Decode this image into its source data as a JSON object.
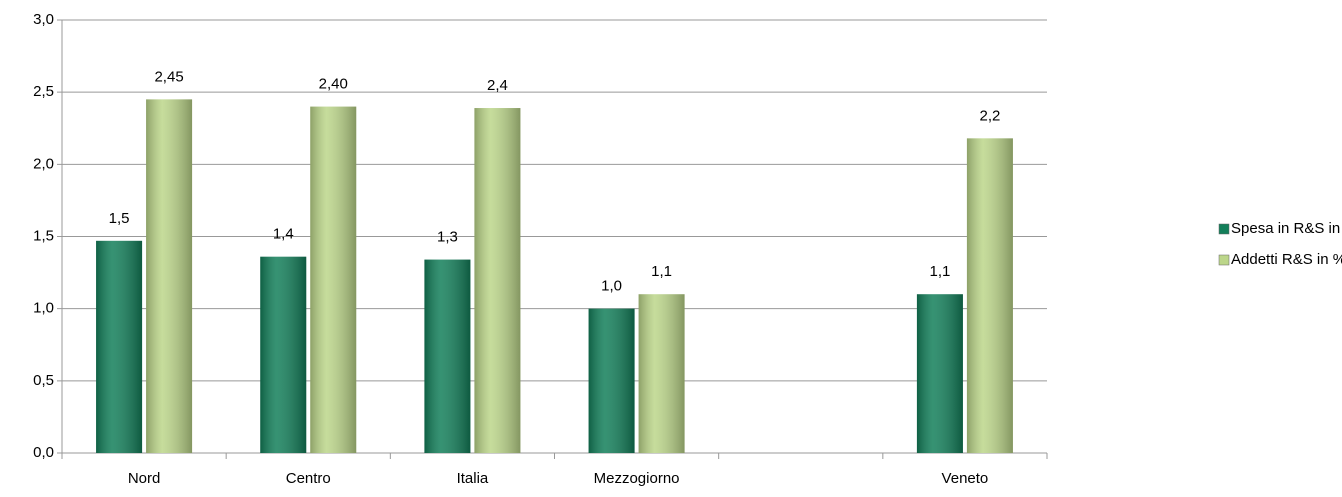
{
  "chart_data": {
    "type": "bar",
    "categories": [
      "Nord",
      "Centro",
      "Italia",
      "Mezzogiorno",
      null,
      "Veneto"
    ],
    "series": [
      {
        "name": "Spesa in R&S in % del PIL",
        "color": "#137f5a",
        "values": [
          1.47,
          1.36,
          1.34,
          1.0,
          null,
          1.1
        ],
        "value_labels": [
          "1,5",
          "1,4",
          "1,3",
          "1,0",
          null,
          "1,1"
        ]
      },
      {
        "name": "Addetti R&S in % del totale",
        "color": "#bcd68a",
        "values": [
          2.45,
          2.4,
          2.39,
          1.1,
          null,
          2.18
        ],
        "value_labels": [
          "2,45",
          "2,40",
          "2,4",
          "1,1",
          null,
          "2,2"
        ]
      }
    ],
    "ylim": [
      0,
      3
    ],
    "yticks": [
      {
        "value": 0,
        "label": "0,0"
      },
      {
        "value": 0.5,
        "label": "0,5"
      },
      {
        "value": 1,
        "label": "1,0"
      },
      {
        "value": 1.5,
        "label": "1,5"
      },
      {
        "value": 2,
        "label": "2,0"
      },
      {
        "value": 2.5,
        "label": "2,5"
      },
      {
        "value": 3,
        "label": "3,0"
      }
    ],
    "grid": true,
    "legend": "right"
  }
}
